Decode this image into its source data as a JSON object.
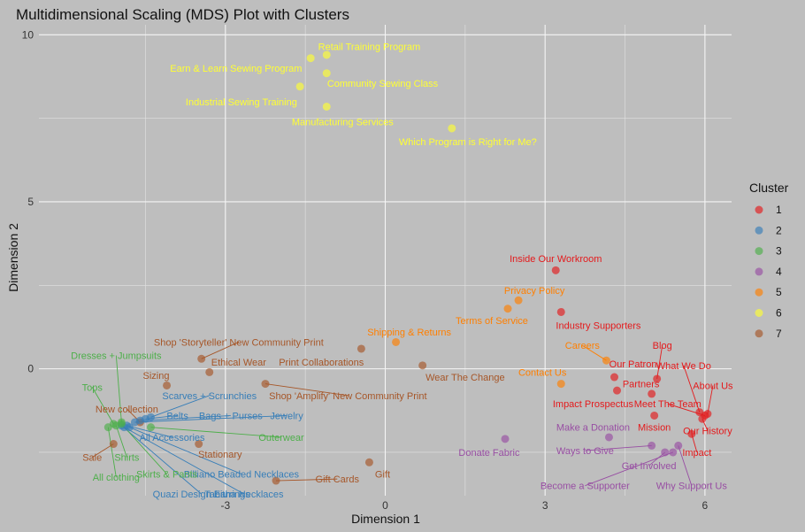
{
  "chart_data": {
    "type": "scatter",
    "title": "Multidimensional Scaling (MDS) Plot with Clusters",
    "xlabel": "Dimension 1",
    "ylabel": "Dimension 2",
    "xlim": [
      -6.5,
      6.5
    ],
    "ylim": [
      -3.8,
      10.3
    ],
    "xticks": [
      -3,
      0,
      3,
      6
    ],
    "yticks": [
      0,
      5,
      10
    ],
    "grid": true,
    "legend_title": "Cluster",
    "legend_position": "right",
    "clusters": [
      {
        "name": "1",
        "color": "#e41a1c"
      },
      {
        "name": "2",
        "color": "#377eb8"
      },
      {
        "name": "3",
        "color": "#4daf4a"
      },
      {
        "name": "4",
        "color": "#984ea3"
      },
      {
        "name": "5",
        "color": "#ff7f00"
      },
      {
        "name": "6",
        "color": "#ffff33"
      },
      {
        "name": "7",
        "color": "#a65628"
      }
    ],
    "points": [
      {
        "label": "Retail Training Program",
        "cluster": "6",
        "x": -1.1,
        "y": 9.4,
        "lx": -0.3,
        "ly": 9.65,
        "ha": "middle",
        "leader": false
      },
      {
        "label": "Earn & Learn Sewing Program",
        "cluster": "6",
        "x": -1.4,
        "y": 9.3,
        "lx": -2.8,
        "ly": 9.0,
        "ha": "middle",
        "leader": false
      },
      {
        "label": "Community Sewing Class",
        "cluster": "6",
        "x": -1.1,
        "y": 8.85,
        "lx": -0.05,
        "ly": 8.55,
        "ha": "middle",
        "leader": false
      },
      {
        "label": "Industrial Sewing Training",
        "cluster": "6",
        "x": -1.6,
        "y": 8.45,
        "lx": -2.7,
        "ly": 8.0,
        "ha": "middle",
        "leader": false
      },
      {
        "label": "Manufacturing Services",
        "cluster": "6",
        "x": -1.1,
        "y": 7.85,
        "lx": -0.8,
        "ly": 7.4,
        "ha": "middle",
        "leader": false
      },
      {
        "label": "Which Program is Right for Me?",
        "cluster": "6",
        "x": 1.25,
        "y": 7.2,
        "lx": 1.55,
        "ly": 6.8,
        "ha": "middle",
        "leader": false
      },
      {
        "label": "Inside Our Workroom",
        "cluster": "1",
        "x": 3.2,
        "y": 2.95,
        "lx": 3.2,
        "ly": 3.3,
        "ha": "middle",
        "leader": false
      },
      {
        "label": "Industry Supporters",
        "cluster": "1",
        "x": 3.3,
        "y": 1.7,
        "lx": 4.0,
        "ly": 1.3,
        "ha": "middle",
        "leader": false
      },
      {
        "label": "Blog",
        "cluster": "1",
        "x": 5.1,
        "y": -0.3,
        "lx": 5.2,
        "ly": 0.7,
        "ha": "middle",
        "leader": true
      },
      {
        "label": "Our Patron",
        "cluster": "1",
        "x": 4.3,
        "y": -0.25,
        "lx": 4.65,
        "ly": 0.15,
        "ha": "middle",
        "leader": false
      },
      {
        "label": "What We Do",
        "cluster": "1",
        "x": 5.9,
        "y": -1.3,
        "lx": 5.6,
        "ly": 0.1,
        "ha": "middle",
        "leader": true
      },
      {
        "label": "Partners",
        "cluster": "1",
        "x": 4.35,
        "y": -0.65,
        "lx": 4.8,
        "ly": -0.45,
        "ha": "middle",
        "leader": false
      },
      {
        "label": "About Us",
        "cluster": "1",
        "x": 6.05,
        "y": -1.35,
        "lx": 6.15,
        "ly": -0.5,
        "ha": "middle",
        "leader": true
      },
      {
        "label": "Impact Prospectus",
        "cluster": "1",
        "x": 5.0,
        "y": -0.75,
        "lx": 3.9,
        "ly": -1.05,
        "ha": "middle",
        "leader": false
      },
      {
        "label": "Meet The Team",
        "cluster": "1",
        "x": 6.0,
        "y": -1.4,
        "lx": 5.3,
        "ly": -1.05,
        "ha": "middle",
        "leader": true
      },
      {
        "label": "Mission",
        "cluster": "1",
        "x": 5.05,
        "y": -1.4,
        "lx": 5.05,
        "ly": -1.75,
        "ha": "middle",
        "leader": false
      },
      {
        "label": "Our History",
        "cluster": "1",
        "x": 5.95,
        "y": -1.5,
        "lx": 6.05,
        "ly": -1.85,
        "ha": "middle",
        "leader": true
      },
      {
        "label": "Impact",
        "cluster": "1",
        "x": 5.75,
        "y": -1.95,
        "lx": 5.85,
        "ly": -2.5,
        "ha": "middle",
        "leader": true
      },
      {
        "label": "Privacy Policy",
        "cluster": "5",
        "x": 2.5,
        "y": 2.05,
        "lx": 2.8,
        "ly": 2.35,
        "ha": "middle",
        "leader": false
      },
      {
        "label": "Terms of Service",
        "cluster": "5",
        "x": 2.3,
        "y": 1.8,
        "lx": 2.0,
        "ly": 1.45,
        "ha": "middle",
        "leader": false
      },
      {
        "label": "Shipping & Returns",
        "cluster": "5",
        "x": 0.2,
        "y": 0.8,
        "lx": 0.45,
        "ly": 1.1,
        "ha": "middle",
        "leader": false
      },
      {
        "label": "Careers",
        "cluster": "5",
        "x": 4.15,
        "y": 0.25,
        "lx": 3.7,
        "ly": 0.7,
        "ha": "middle",
        "leader": true
      },
      {
        "label": "Contact Us",
        "cluster": "5",
        "x": 3.3,
        "y": -0.45,
        "lx": 2.95,
        "ly": -0.1,
        "ha": "middle",
        "leader": false
      },
      {
        "label": "Donate Fabric",
        "cluster": "4",
        "x": 2.25,
        "y": -2.1,
        "lx": 1.95,
        "ly": -2.5,
        "ha": "middle",
        "leader": false
      },
      {
        "label": "Make a Donation",
        "cluster": "4",
        "x": 4.2,
        "y": -2.05,
        "lx": 3.9,
        "ly": -1.75,
        "ha": "middle",
        "leader": false
      },
      {
        "label": "Ways to Give",
        "cluster": "4",
        "x": 5.0,
        "y": -2.3,
        "lx": 3.75,
        "ly": -2.45,
        "ha": "middle",
        "leader": true
      },
      {
        "label": "Get Involved",
        "cluster": "4",
        "x": 5.25,
        "y": -2.5,
        "lx": 4.95,
        "ly": -2.9,
        "ha": "middle",
        "leader": true
      },
      {
        "label": "Become a Supporter",
        "cluster": "4",
        "x": 5.4,
        "y": -2.5,
        "lx": 3.75,
        "ly": -3.5,
        "ha": "middle",
        "leader": true
      },
      {
        "label": "Why Support Us",
        "cluster": "4",
        "x": 5.5,
        "y": -2.3,
        "lx": 5.75,
        "ly": -3.5,
        "ha": "middle",
        "leader": true
      },
      {
        "label": "Shop 'Storyteller' New Community Print",
        "cluster": "7",
        "x": -3.45,
        "y": 0.3,
        "lx": -2.75,
        "ly": 0.8,
        "ha": "middle",
        "leader": true
      },
      {
        "label": "Print Collaborations",
        "cluster": "7",
        "x": -0.45,
        "y": 0.6,
        "lx": -1.2,
        "ly": 0.2,
        "ha": "middle",
        "leader": false
      },
      {
        "label": "Ethical Wear",
        "cluster": "7",
        "x": -3.3,
        "y": -0.1,
        "lx": -2.75,
        "ly": 0.2,
        "ha": "middle",
        "leader": false
      },
      {
        "label": "Wear The Change",
        "cluster": "7",
        "x": 0.7,
        "y": 0.1,
        "lx": 1.5,
        "ly": -0.25,
        "ha": "middle",
        "leader": false
      },
      {
        "label": "Sizing",
        "cluster": "7",
        "x": -4.1,
        "y": -0.5,
        "lx": -4.3,
        "ly": -0.2,
        "ha": "middle",
        "leader": false
      },
      {
        "label": "Shop 'Amplify' New Community Print",
        "cluster": "7",
        "x": -2.25,
        "y": -0.45,
        "lx": -0.7,
        "ly": -0.8,
        "ha": "middle",
        "leader": true
      },
      {
        "label": "Stationary",
        "cluster": "7",
        "x": -3.5,
        "y": -2.25,
        "lx": -3.1,
        "ly": -2.55,
        "ha": "middle",
        "leader": false
      },
      {
        "label": "Sale",
        "cluster": "7",
        "x": -5.1,
        "y": -2.25,
        "lx": -5.5,
        "ly": -2.65,
        "ha": "middle",
        "leader": true
      },
      {
        "label": "New collection",
        "cluster": "7",
        "x": -4.6,
        "y": -1.6,
        "lx": -4.85,
        "ly": -1.2,
        "ha": "middle",
        "leader": true
      },
      {
        "label": "Gift",
        "cluster": "7",
        "x": -0.3,
        "y": -2.8,
        "lx": -0.05,
        "ly": -3.15,
        "ha": "middle",
        "leader": false
      },
      {
        "label": "Gift Cards",
        "cluster": "7",
        "x": -2.05,
        "y": -3.35,
        "lx": -0.9,
        "ly": -3.3,
        "ha": "middle",
        "leader": true
      },
      {
        "label": "Scarves + Scrunchies",
        "cluster": "2",
        "x": -4.4,
        "y": -1.45,
        "lx": -3.3,
        "ly": -0.8,
        "ha": "middle",
        "leader": true
      },
      {
        "label": "Belts",
        "cluster": "2",
        "x": -4.5,
        "y": -1.5,
        "lx": -3.9,
        "ly": -1.4,
        "ha": "middle",
        "leader": true
      },
      {
        "label": "Bags + Purses",
        "cluster": "2",
        "x": -4.6,
        "y": -1.55,
        "lx": -2.9,
        "ly": -1.4,
        "ha": "middle",
        "leader": true
      },
      {
        "label": "Jewelry",
        "cluster": "2",
        "x": -4.7,
        "y": -1.6,
        "lx": -1.85,
        "ly": -1.4,
        "ha": "middle",
        "leader": true
      },
      {
        "label": "All Accessories",
        "cluster": "2",
        "x": -4.85,
        "y": -1.7,
        "lx": -4.0,
        "ly": -2.05,
        "ha": "middle",
        "leader": true
      },
      {
        "label": "Billiano Beaded Necklaces",
        "cluster": "2",
        "x": -4.8,
        "y": -1.75,
        "lx": -2.7,
        "ly": -3.15,
        "ha": "middle",
        "leader": true
      },
      {
        "label": "Tabitha Necklaces",
        "cluster": "2",
        "x": -4.9,
        "y": -1.75,
        "lx": -2.65,
        "ly": -3.75,
        "ha": "middle",
        "leader": true
      },
      {
        "label": "Quazi Design Earrings",
        "cluster": "2",
        "x": -4.95,
        "y": -1.7,
        "lx": -3.45,
        "ly": -3.75,
        "ha": "middle",
        "leader": true
      },
      {
        "label": "Dresses + Jumpsuits",
        "cluster": "3",
        "x": -4.95,
        "y": -1.6,
        "lx": -5.05,
        "ly": 0.4,
        "ha": "middle",
        "leader": true
      },
      {
        "label": "Tops",
        "cluster": "3",
        "x": -5.1,
        "y": -1.65,
        "lx": -5.5,
        "ly": -0.55,
        "ha": "middle",
        "leader": true
      },
      {
        "label": "Outerwear",
        "cluster": "3",
        "x": -4.4,
        "y": -1.75,
        "lx": -1.95,
        "ly": -2.05,
        "ha": "middle",
        "leader": true
      },
      {
        "label": "Shirts",
        "cluster": "3",
        "x": -5.05,
        "y": -1.7,
        "lx": -4.85,
        "ly": -2.65,
        "ha": "middle",
        "leader": true
      },
      {
        "label": "All clothing",
        "cluster": "3",
        "x": -5.2,
        "y": -1.75,
        "lx": -5.05,
        "ly": -3.25,
        "ha": "middle",
        "leader": true
      },
      {
        "label": "Skirts & Pants",
        "cluster": "3",
        "x": -4.95,
        "y": -1.65,
        "lx": -4.1,
        "ly": -3.15,
        "ha": "middle",
        "leader": true
      }
    ]
  }
}
